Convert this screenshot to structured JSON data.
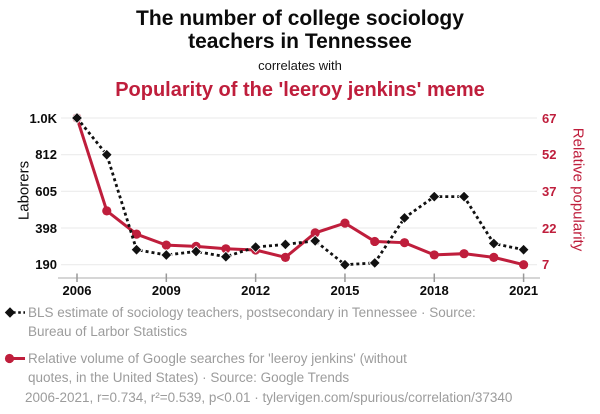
{
  "header": {
    "title": "The number of college sociology teachers in Tennessee",
    "connector": "correlates with",
    "subtitle": "Popularity of the 'leeroy jenkins' meme"
  },
  "colors": {
    "accent_red": "#bf1e3c",
    "series_black": "#111111",
    "legend_gray": "#9c9c9c",
    "grid": "#e9e9e9",
    "axis_line": "#c9c9c9",
    "tick_mark": "#999999"
  },
  "chart_data": {
    "type": "line",
    "title": "The number of college sociology teachers in Tennessee correlates with Popularity of the 'leeroy jenkins' meme",
    "x": [
      2006,
      2007,
      2008,
      2009,
      2010,
      2011,
      2012,
      2013,
      2014,
      2015,
      2016,
      2017,
      2018,
      2019,
      2020,
      2021
    ],
    "series": [
      {
        "id": "teachers",
        "name": "BLS estimate of sociology teachers, postsecondary in Tennessee",
        "axis": "left",
        "color": "#111111",
        "marker": "diamond",
        "line": "dotted",
        "values": [
          1000,
          812,
          275,
          245,
          265,
          235,
          290,
          305,
          325,
          190,
          200,
          455,
          575,
          575,
          310,
          275
        ]
      },
      {
        "id": "popularity",
        "name": "Relative volume of Google searches for 'leeroy jenkins' (without quotes, in the United States)",
        "axis": "right",
        "color": "#bf1e3c",
        "marker": "circle",
        "line": "solid",
        "values": [
          67,
          29,
          19.5,
          15,
          14.5,
          13.5,
          13,
          10,
          20,
          24,
          16.5,
          16,
          11,
          11.5,
          10,
          7
        ]
      }
    ],
    "axes": {
      "left": {
        "label": "Laborers",
        "ticks": [
          {
            "label": "1.0K",
            "value": 1000
          },
          {
            "label": "812",
            "value": 812
          },
          {
            "label": "605",
            "value": 605
          },
          {
            "label": "398",
            "value": 398
          },
          {
            "label": "190",
            "value": 190
          }
        ]
      },
      "right": {
        "label": "Relative popularity",
        "ticks": [
          {
            "label": "67",
            "value": 67
          },
          {
            "label": "52",
            "value": 52
          },
          {
            "label": "37",
            "value": 37
          },
          {
            "label": "22",
            "value": 22
          },
          {
            "label": "7",
            "value": 7
          }
        ]
      },
      "x": {
        "ticks": [
          2006,
          2009,
          2012,
          2015,
          2018,
          2021
        ]
      }
    },
    "grid": "horizontal",
    "legend_position": "bottom-left"
  },
  "legend": [
    {
      "lines": [
        "BLS estimate of sociology teachers, postsecondary in Tennessee · Source:",
        "Bureau of Larbor Statistics"
      ]
    },
    {
      "lines": [
        "Relative volume of Google searches for 'leeroy jenkins' (without",
        "quotes, in the United States) · Source: Google Trends"
      ]
    }
  ],
  "footer": "2006-2021, r=0.734, r²=0.539, p<0.01 · tylervigen.com/spurious/correlation/37340"
}
